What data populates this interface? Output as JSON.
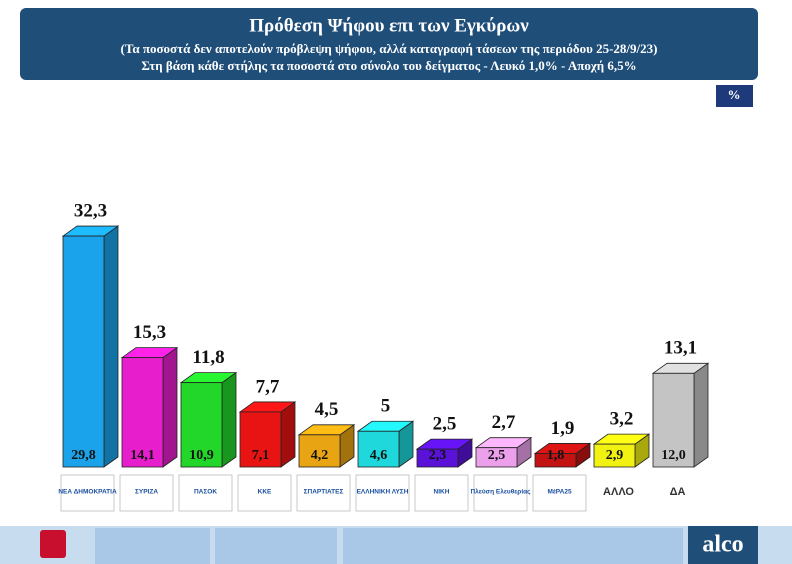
{
  "chart_data": {
    "type": "bar3d",
    "title": "Πρόθεση Ψήφου επι των Εγκύρων",
    "subtitle": "(Τα ποσοστά δεν αποτελούν πρόβλεψη ψήφου, αλλά καταγραφή τάσεων της περιόδου  25-28/9/23)",
    "subtitle2": "Στη βάση κάθε στήλης τα ποσοστά στο σύνολο του δείγματος - Λευκό 1,0% - Αποχή 6,5%",
    "unit_badge": "%",
    "categories": [
      "ΝΕΑ ΔΗΜΟΚΡΑΤΙΑ",
      "ΣΥΡΙΖΑ",
      "ΠΑΣΟΚ",
      "ΚΚΕ",
      "ΣΠΑΡΤΙΑΤΕΣ",
      "ΕΛΛΗΝΙΚΗ ΛΥΣΗ",
      "ΝΙΚΗ",
      "Πλεύση Ελευθερίας",
      "ΜέΡΑ25",
      "ΑΛΛΟ",
      "ΔΑ"
    ],
    "values": [
      32.3,
      15.3,
      11.8,
      7.7,
      4.5,
      5,
      2.5,
      2.7,
      1.9,
      3.2,
      13.1
    ],
    "value_labels": [
      "32,3",
      "15,3",
      "11,8",
      "7,7",
      "4,5",
      "5",
      "2,5",
      "2,7",
      "1,9",
      "3,2",
      "13,1"
    ],
    "sample_values": [
      29.8,
      14.1,
      10.9,
      7.1,
      4.2,
      4.6,
      2.3,
      2.5,
      1.8,
      2.9,
      12.0
    ],
    "sample_value_labels": [
      "29,8",
      "14,1",
      "10,9",
      "7,1",
      "4,2",
      "4,6",
      "2,3",
      "2,5",
      "1,8",
      "2,9",
      "12,0"
    ],
    "colors": [
      "#1aa3ea",
      "#e61ecb",
      "#22d62a",
      "#e81414",
      "#e8a412",
      "#1ed8dc",
      "#5a12d8",
      "#eca0ec",
      "#c21212",
      "#f2f212",
      "#c4c4c4"
    ],
    "brand": "alco"
  }
}
